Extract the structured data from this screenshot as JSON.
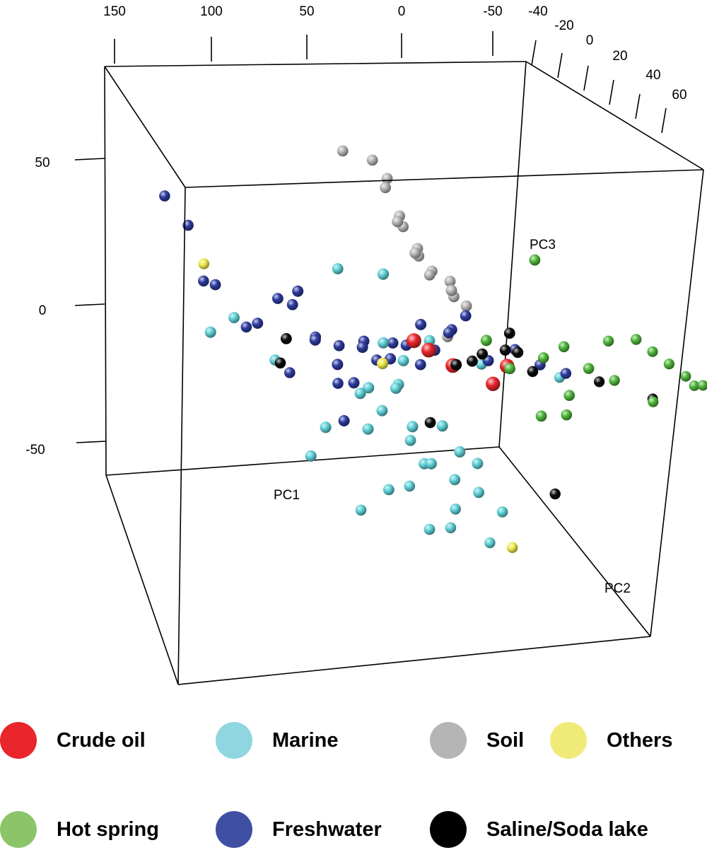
{
  "chart_data": {
    "type": "scatter3d",
    "title": "",
    "axes": {
      "pc1": {
        "label": "PC1",
        "ticks": [
          "150",
          "100",
          "50",
          "0",
          "-50"
        ]
      },
      "pc2": {
        "label": "PC2",
        "ticks": [
          "-40",
          "-20",
          "0",
          "20",
          "40",
          "60"
        ]
      },
      "pc3": {
        "label": "PC3",
        "ticks": [
          "50",
          "0",
          "-50"
        ]
      }
    },
    "series": [
      {
        "name": "Crude oil",
        "color": "#e8262b",
        "points": [
          [
            5,
            -5,
            -10
          ],
          [
            -20,
            10,
            -15
          ],
          [
            -30,
            5,
            -12
          ],
          [
            -5,
            0,
            -13
          ],
          [
            10,
            -10,
            -9
          ]
        ]
      },
      {
        "name": "Marine",
        "color": "#5fd0d6",
        "points": [
          [
            20,
            -5,
            -20
          ],
          [
            25,
            -10,
            -30
          ],
          [
            15,
            0,
            -35
          ],
          [
            10,
            5,
            -40
          ],
          [
            0,
            -5,
            -45
          ],
          [
            -10,
            0,
            -48
          ],
          [
            -20,
            5,
            -50
          ],
          [
            -15,
            -5,
            -42
          ],
          [
            5,
            -15,
            -38
          ],
          [
            30,
            -15,
            -25
          ],
          [
            35,
            -5,
            -33
          ],
          [
            -5,
            10,
            -52
          ],
          [
            0,
            15,
            -55
          ],
          [
            -25,
            -5,
            -46
          ],
          [
            20,
            10,
            -44
          ],
          [
            12,
            -20,
            -28
          ],
          [
            -8,
            -10,
            -36
          ],
          [
            28,
            5,
            -47
          ],
          [
            15,
            -10,
            -15
          ],
          [
            8,
            0,
            -5
          ],
          [
            -12,
            12,
            -8
          ],
          [
            25,
            -12,
            -10
          ],
          [
            110,
            0,
            5
          ],
          [
            95,
            15,
            -2
          ],
          [
            120,
            -5,
            -1
          ],
          [
            60,
            5,
            20
          ],
          [
            40,
            -5,
            -22
          ],
          [
            55,
            -10,
            -34
          ],
          [
            65,
            -5,
            -40
          ],
          [
            -18,
            20,
            -58
          ],
          [
            -30,
            10,
            -54
          ],
          [
            45,
            10,
            -50
          ],
          [
            -40,
            30,
            -6
          ],
          [
            22,
            -20,
            8
          ],
          [
            5,
            5,
            -60
          ]
        ]
      },
      {
        "name": "Soil",
        "color": "#b5b5b5",
        "points": [
          [
            60,
            5,
            55
          ],
          [
            45,
            5,
            52
          ],
          [
            40,
            10,
            48
          ],
          [
            35,
            0,
            42
          ],
          [
            30,
            5,
            35
          ],
          [
            25,
            0,
            30
          ],
          [
            20,
            5,
            25
          ],
          [
            15,
            -5,
            20
          ],
          [
            10,
            0,
            15
          ],
          [
            0,
            5,
            10
          ],
          [
            -5,
            -5,
            8
          ],
          [
            -10,
            0,
            5
          ],
          [
            5,
            10,
            0
          ],
          [
            22,
            -10,
            28
          ],
          [
            12,
            5,
            18
          ],
          [
            -2,
            -2,
            12
          ],
          [
            18,
            3,
            22
          ]
        ]
      },
      {
        "name": "Others",
        "color": "#f0ea4a",
        "points": [
          [
            130,
            10,
            25
          ],
          [
            20,
            -20,
            -20
          ],
          [
            -30,
            20,
            -60
          ]
        ]
      },
      {
        "name": "Hot spring",
        "color": "#4fb63a",
        "points": [
          [
            -55,
            10,
            -5
          ],
          [
            -70,
            20,
            0
          ],
          [
            -80,
            25,
            2
          ],
          [
            -85,
            30,
            0
          ],
          [
            -90,
            35,
            -2
          ],
          [
            -95,
            40,
            -4
          ],
          [
            -100,
            45,
            -5
          ],
          [
            -110,
            55,
            -6
          ],
          [
            -65,
            15,
            -10
          ],
          [
            -75,
            20,
            -12
          ],
          [
            -60,
            10,
            -20
          ],
          [
            -50,
            5,
            -28
          ],
          [
            -35,
            0,
            -15
          ],
          [
            -45,
            10,
            -8
          ],
          [
            -105,
            60,
            8
          ],
          [
            -88,
            30,
            -15
          ],
          [
            -40,
            5,
            20
          ],
          [
            -58,
            12,
            -25
          ],
          [
            -25,
            -5,
            -8
          ],
          [
            -92,
            50,
            -3
          ]
        ]
      },
      {
        "name": "Freshwater",
        "color": "#2e3b9e",
        "points": [
          [
            150,
            10,
            45
          ],
          [
            140,
            15,
            38
          ],
          [
            130,
            10,
            20
          ],
          [
            120,
            0,
            15
          ],
          [
            100,
            5,
            5
          ],
          [
            80,
            0,
            8
          ],
          [
            70,
            5,
            0
          ],
          [
            65,
            -5,
            -5
          ],
          [
            55,
            0,
            -5
          ],
          [
            45,
            5,
            -2
          ],
          [
            40,
            -5,
            -8
          ],
          [
            35,
            0,
            -10
          ],
          [
            30,
            5,
            -3
          ],
          [
            25,
            -5,
            -12
          ],
          [
            20,
            0,
            -6
          ],
          [
            15,
            5,
            -10
          ],
          [
            10,
            -5,
            -2
          ],
          [
            5,
            0,
            -8
          ],
          [
            0,
            5,
            0
          ],
          [
            -5,
            -5,
            -5
          ],
          [
            -10,
            0,
            2
          ],
          [
            -30,
            10,
            -5
          ],
          [
            -20,
            5,
            -10
          ],
          [
            50,
            -10,
            -15
          ],
          [
            42,
            -8,
            -20
          ],
          [
            60,
            10,
            -12
          ],
          [
            75,
            -5,
            10
          ],
          [
            90,
            5,
            12
          ],
          [
            110,
            15,
            8
          ],
          [
            85,
            10,
            -8
          ],
          [
            -40,
            15,
            -8
          ],
          [
            -50,
            20,
            -9
          ],
          [
            48,
            -5,
            -30
          ]
        ]
      },
      {
        "name": "Saline/Soda lake",
        "color": "#0a0a0a",
        "points": [
          [
            85,
            5,
            0
          ],
          [
            90,
            10,
            -5
          ],
          [
            -25,
            10,
            -5
          ],
          [
            -30,
            5,
            -2
          ],
          [
            -35,
            5,
            -8
          ],
          [
            -15,
            0,
            -12
          ],
          [
            -10,
            -5,
            -15
          ],
          [
            5,
            0,
            -30
          ],
          [
            -60,
            30,
            -8
          ],
          [
            -80,
            40,
            -10
          ],
          [
            -50,
            20,
            -45
          ],
          [
            -40,
            10,
            -12
          ],
          [
            -20,
            0,
            -10
          ]
        ]
      }
    ]
  },
  "legend": {
    "items": [
      {
        "label": "Crude oil",
        "color": "#e8262b"
      },
      {
        "label": "Marine",
        "color": "#8fd6e0"
      },
      {
        "label": "Soil",
        "color": "#b5b5b5"
      },
      {
        "label": "Others",
        "color": "#f0ea78"
      },
      {
        "label": "Hot spring",
        "color": "#8cc46a"
      },
      {
        "label": "Freshwater",
        "color": "#3f4fa3"
      },
      {
        "label": "Saline/Soda lake",
        "color": "#000000"
      }
    ]
  }
}
